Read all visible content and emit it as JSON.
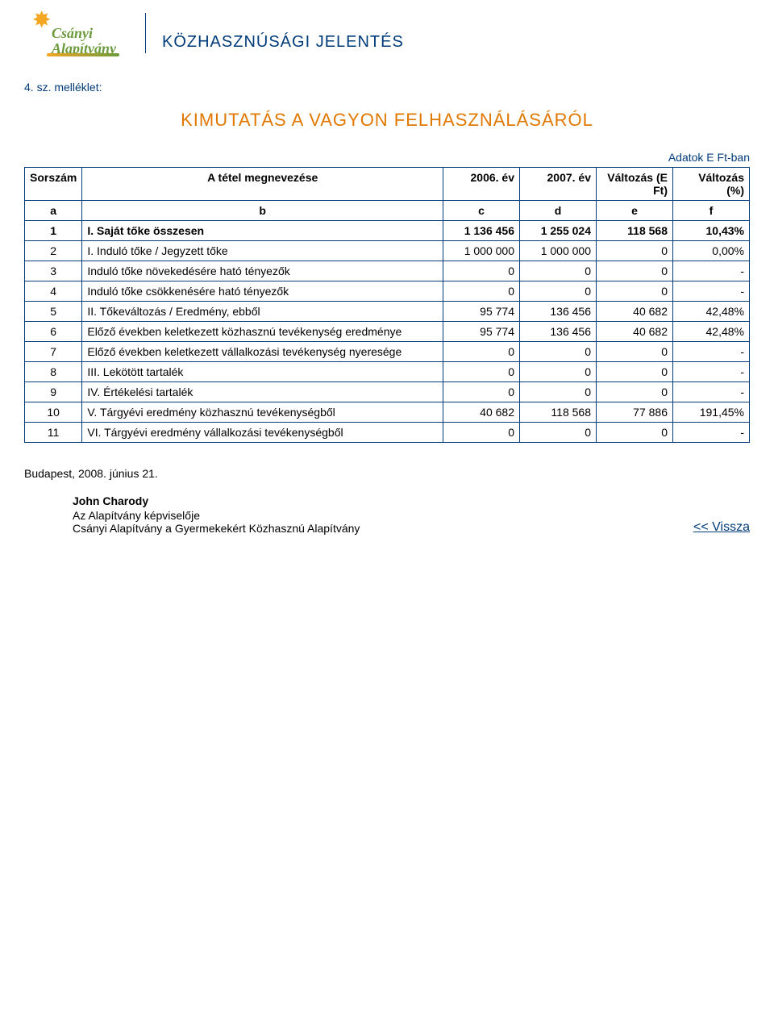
{
  "header": {
    "org_name_line1": "Csányi",
    "org_name_line2": "Alapítvány",
    "report_title": "KÖZHASZNÚSÁGI JELENTÉS"
  },
  "attachment_label": "4. sz. melléklet:",
  "main_title": "KIMUTATÁS A VAGYON FELHASZNÁLÁSÁRÓL",
  "units_label": "Adatok E Ft-ban",
  "table": {
    "columns": [
      {
        "label": "Sorszám",
        "sub": "a"
      },
      {
        "label": "A tétel megnevezése",
        "sub": "b"
      },
      {
        "label": "2006. év",
        "sub": "c"
      },
      {
        "label": "2007. év",
        "sub": "d"
      },
      {
        "label": "Változás (E Ft)",
        "sub": "e"
      },
      {
        "label": "Változás (%)",
        "sub": "f"
      }
    ],
    "rows": [
      {
        "n": "1",
        "name": "I. Saját tőke összesen",
        "c": "1 136 456",
        "d": "1 255 024",
        "e": "118 568",
        "f": "10,43%",
        "bold": true
      },
      {
        "n": "2",
        "name": "I. Induló tőke / Jegyzett tőke",
        "c": "1 000 000",
        "d": "1 000 000",
        "e": "0",
        "f": "0,00%"
      },
      {
        "n": "3",
        "name": "Induló tőke növekedésére ható tényezők",
        "c": "0",
        "d": "0",
        "e": "0",
        "f": "-"
      },
      {
        "n": "4",
        "name": "Induló tőke csökkenésére ható tényezők",
        "c": "0",
        "d": "0",
        "e": "0",
        "f": "-"
      },
      {
        "n": "5",
        "name": "II. Tőkeváltozás / Eredmény, ebből",
        "c": "95 774",
        "d": "136 456",
        "e": "40 682",
        "f": "42,48%"
      },
      {
        "n": "6",
        "name": "Előző években keletkezett közhasznú tevékenység eredménye",
        "c": "95 774",
        "d": "136 456",
        "e": "40 682",
        "f": "42,48%"
      },
      {
        "n": "7",
        "name": "Előző években keletkezett vállalkozási tevékenység nyeresége",
        "c": "0",
        "d": "0",
        "e": "0",
        "f": "-"
      },
      {
        "n": "8",
        "name": "III. Lekötött tartalék",
        "c": "0",
        "d": "0",
        "e": "0",
        "f": "-"
      },
      {
        "n": "9",
        "name": "IV. Értékelési tartalék",
        "c": "0",
        "d": "0",
        "e": "0",
        "f": "-"
      },
      {
        "n": "10",
        "name": "V. Tárgyévi eredmény közhasznú tevékenységből",
        "c": "40 682",
        "d": "118 568",
        "e": "77 886",
        "f": "191,45%"
      },
      {
        "n": "11",
        "name": "VI. Tárgyévi eredmény vállalkozási tevékenységből",
        "c": "0",
        "d": "0",
        "e": "0",
        "f": "-"
      }
    ]
  },
  "footer": {
    "date": "Budapest, 2008. június 21.",
    "signer_name": "John Charody",
    "signer_role": "Az Alapítvány képviselője",
    "signer_org": "Csányi Alapítvány a Gyermekekért Közhasznú Alapítvány",
    "back_label": "<< Vissza"
  },
  "colors": {
    "brand_blue": "#003b7a",
    "brand_orange": "#e07800",
    "logo_green": "#6b9a3a",
    "logo_orange": "#f5a623",
    "text_black": "#000000",
    "bg": "#ffffff"
  }
}
